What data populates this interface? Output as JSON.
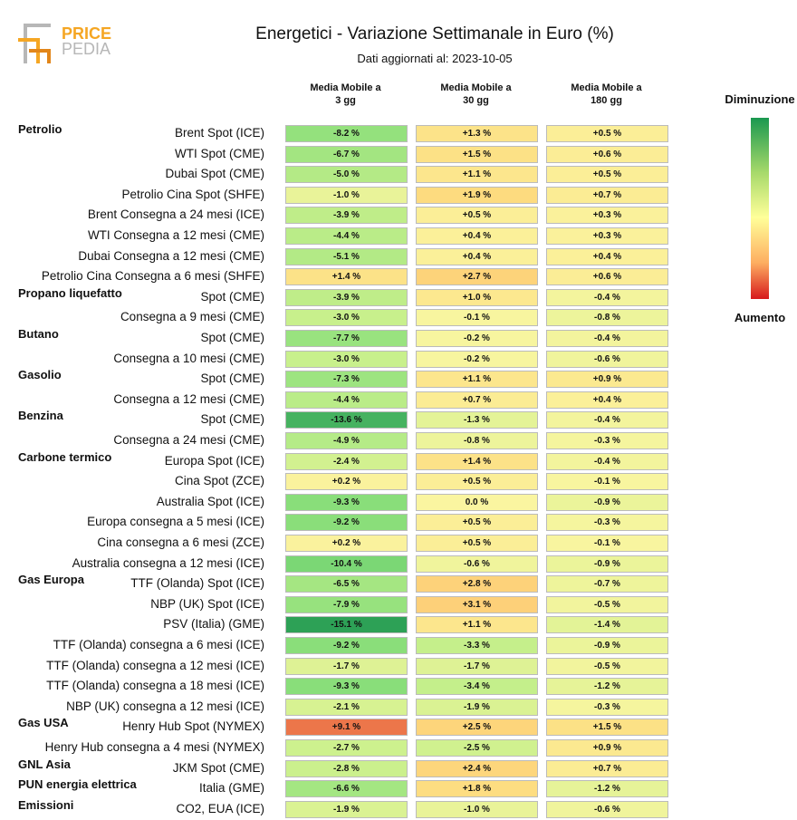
{
  "logo": {
    "line1": "PRICE",
    "line2": "PEDIA"
  },
  "chart_data": {
    "type": "table",
    "title": "Energetici - Variazione Settimanale in Euro (%)",
    "subtitle": "Dati aggiornati al: 2023-10-05",
    "columns": [
      {
        "l1": "Media Mobile a",
        "l2": "3 gg"
      },
      {
        "l1": "Media Mobile a",
        "l2": "30 gg"
      },
      {
        "l1": "Media Mobile a",
        "l2": "180 gg"
      }
    ],
    "legend": {
      "top": "Diminuzione",
      "bottom": "Aumento"
    },
    "rows": [
      {
        "group": "Petrolio",
        "label": "Brent Spot (ICE)",
        "values": [
          "-8.2 %",
          "+1.3 %",
          "+0.5 %"
        ]
      },
      {
        "group": "",
        "label": "WTI Spot (CME)",
        "values": [
          "-6.7 %",
          "+1.5 %",
          "+0.6 %"
        ]
      },
      {
        "group": "",
        "label": "Dubai Spot (CME)",
        "values": [
          "-5.0 %",
          "+1.1 %",
          "+0.5 %"
        ]
      },
      {
        "group": "",
        "label": "Petrolio Cina Spot (SHFE)",
        "values": [
          "-1.0 %",
          "+1.9 %",
          "+0.7 %"
        ]
      },
      {
        "group": "",
        "label": "Brent Consegna a 24 mesi (ICE)",
        "values": [
          "-3.9 %",
          "+0.5 %",
          "+0.3 %"
        ]
      },
      {
        "group": "",
        "label": "WTI Consegna a 12 mesi (CME)",
        "values": [
          "-4.4 %",
          "+0.4 %",
          "+0.3 %"
        ]
      },
      {
        "group": "",
        "label": "Dubai Consegna a 12 mesi (CME)",
        "values": [
          "-5.1 %",
          "+0.4 %",
          "+0.4 %"
        ]
      },
      {
        "group": "",
        "label": "Petrolio Cina Consegna a 6 mesi (SHFE)",
        "values": [
          "+1.4 %",
          "+2.7 %",
          "+0.6 %"
        ]
      },
      {
        "group": "Propano liquefatto",
        "label": "Spot (CME)",
        "values": [
          "-3.9 %",
          "+1.0 %",
          "-0.4 %"
        ]
      },
      {
        "group": "",
        "label": "Consegna a 9 mesi (CME)",
        "values": [
          "-3.0 %",
          "-0.1 %",
          "-0.8 %"
        ]
      },
      {
        "group": "Butano",
        "label": "Spot (CME)",
        "values": [
          "-7.7 %",
          "-0.2 %",
          "-0.4 %"
        ]
      },
      {
        "group": "",
        "label": "Consegna a 10 mesi (CME)",
        "values": [
          "-3.0 %",
          "-0.2 %",
          "-0.6 %"
        ]
      },
      {
        "group": "Gasolio",
        "label": "Spot (CME)",
        "values": [
          "-7.3 %",
          "+1.1 %",
          "+0.9 %"
        ]
      },
      {
        "group": "",
        "label": "Consegna a 12 mesi (CME)",
        "values": [
          "-4.4 %",
          "+0.7 %",
          "+0.4 %"
        ]
      },
      {
        "group": "Benzina",
        "label": "Spot (CME)",
        "values": [
          "-13.6 %",
          "-1.3 %",
          "-0.4 %"
        ]
      },
      {
        "group": "",
        "label": "Consegna a 24 mesi (CME)",
        "values": [
          "-4.9 %",
          "-0.8 %",
          "-0.3 %"
        ]
      },
      {
        "group": "Carbone termico",
        "label": "Europa Spot (ICE)",
        "values": [
          "-2.4 %",
          "+1.4 %",
          "-0.4 %"
        ]
      },
      {
        "group": "",
        "label": "Cina Spot (ZCE)",
        "values": [
          "+0.2 %",
          "+0.5 %",
          "-0.1 %"
        ]
      },
      {
        "group": "",
        "label": "Australia Spot (ICE)",
        "values": [
          "-9.3 %",
          "0.0 %",
          "-0.9 %"
        ]
      },
      {
        "group": "",
        "label": "Europa consegna a 5 mesi (ICE)",
        "values": [
          "-9.2 %",
          "+0.5 %",
          "-0.3 %"
        ]
      },
      {
        "group": "",
        "label": "Cina consegna a 6 mesi (ZCE)",
        "values": [
          "+0.2 %",
          "+0.5 %",
          "-0.1 %"
        ]
      },
      {
        "group": "",
        "label": "Australia consegna a 12 mesi (ICE)",
        "values": [
          "-10.4 %",
          "-0.6 %",
          "-0.9 %"
        ]
      },
      {
        "group": "Gas Europa",
        "label": "TTF (Olanda) Spot (ICE)",
        "values": [
          "-6.5 %",
          "+2.8 %",
          "-0.7 %"
        ]
      },
      {
        "group": "",
        "label": "NBP (UK) Spot (ICE)",
        "values": [
          "-7.9 %",
          "+3.1 %",
          "-0.5 %"
        ]
      },
      {
        "group": "",
        "label": "PSV (Italia) (GME)",
        "values": [
          "-15.1 %",
          "+1.1 %",
          "-1.4 %"
        ]
      },
      {
        "group": "",
        "label": "TTF (Olanda) consegna a 6 mesi (ICE)",
        "values": [
          "-9.2 %",
          "-3.3 %",
          "-0.9 %"
        ]
      },
      {
        "group": "",
        "label": "TTF (Olanda) consegna a 12 mesi (ICE)",
        "values": [
          "-1.7 %",
          "-1.7 %",
          "-0.5 %"
        ]
      },
      {
        "group": "",
        "label": "TTF (Olanda) consegna a 18 mesi (ICE)",
        "values": [
          "-9.3 %",
          "-3.4 %",
          "-1.2 %"
        ]
      },
      {
        "group": "",
        "label": "NBP (UK) consegna a 12 mesi (ICE)",
        "values": [
          "-2.1 %",
          "-1.9 %",
          "-0.3 %"
        ]
      },
      {
        "group": "Gas USA",
        "label": "Henry Hub Spot (NYMEX)",
        "values": [
          "+9.1 %",
          "+2.5 %",
          "+1.5 %"
        ]
      },
      {
        "group": "",
        "label": "Henry Hub consegna a 4 mesi (NYMEX)",
        "values": [
          "-2.7 %",
          "-2.5 %",
          "+0.9 %"
        ]
      },
      {
        "group": "GNL Asia",
        "label": "JKM Spot (CME)",
        "values": [
          "-2.8 %",
          "+2.4 %",
          "+0.7 %"
        ]
      },
      {
        "group": "PUN energia elettrica",
        "label": "Italia (GME)",
        "values": [
          "-6.6 %",
          "+1.8 %",
          "-1.2 %"
        ]
      },
      {
        "group": "Emissioni",
        "label": "CO2, EUA (ICE)",
        "values": [
          "-1.9 %",
          "-1.0 %",
          "-0.6 %"
        ]
      }
    ]
  }
}
